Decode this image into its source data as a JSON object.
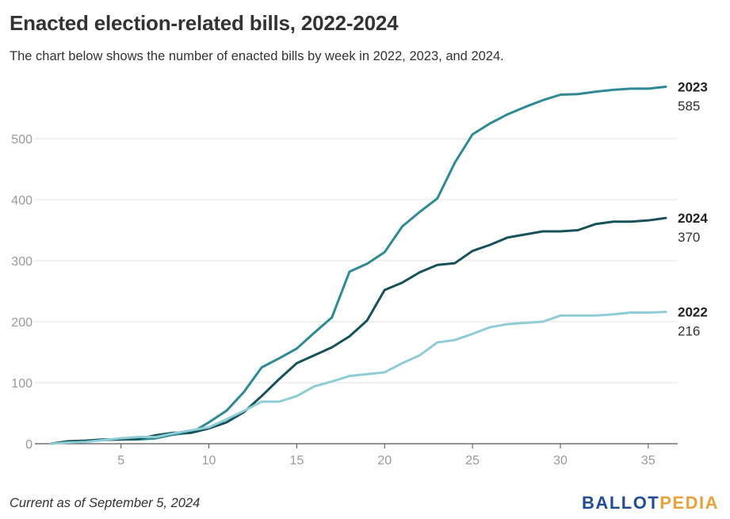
{
  "header": {
    "title": "Enacted election-related bills, 2022-2024",
    "subtitle": "The chart below shows the number of enacted bills by week in 2022, 2023, and 2024."
  },
  "footer": {
    "note": "Current as of September 5, 2024",
    "logo_part1": "BALLOT",
    "logo_part2": "PEDIA"
  },
  "colors": {
    "2022": "#8ecdd6",
    "2023": "#2e8a94",
    "2024": "#17525a",
    "grid": "#e3e3e3",
    "axis": "#555555"
  },
  "chart_data": {
    "type": "line",
    "title": "Enacted election-related bills, 2022-2024",
    "xlabel": "",
    "ylabel": "",
    "xlim": [
      1,
      36
    ],
    "ylim": [
      0,
      600
    ],
    "x_ticks": [
      5,
      10,
      15,
      20,
      25,
      30,
      35
    ],
    "y_ticks": [
      0,
      100,
      200,
      300,
      400,
      500
    ],
    "grid": true,
    "legend": "end-of-line labels",
    "x": [
      1,
      2,
      3,
      4,
      5,
      6,
      7,
      8,
      9,
      10,
      11,
      12,
      13,
      14,
      15,
      16,
      17,
      18,
      19,
      20,
      21,
      22,
      23,
      24,
      25,
      26,
      27,
      28,
      29,
      30,
      31,
      32,
      33,
      34,
      35,
      36
    ],
    "series": [
      {
        "name": "2023",
        "end_value": "585",
        "values": [
          0,
          3,
          4,
          6,
          7,
          7,
          9,
          15,
          18,
          35,
          54,
          85,
          125,
          140,
          156,
          182,
          207,
          282,
          295,
          314,
          356,
          380,
          402,
          461,
          507,
          525,
          540,
          552,
          563,
          572,
          573,
          577,
          580,
          582,
          582,
          585
        ]
      },
      {
        "name": "2024",
        "end_value": "370",
        "values": [
          0,
          4,
          5,
          7,
          7,
          8,
          14,
          18,
          18,
          25,
          35,
          52,
          78,
          106,
          132,
          145,
          158,
          176,
          202,
          252,
          264,
          281,
          293,
          296,
          316,
          326,
          338,
          343,
          348,
          348,
          350,
          360,
          364,
          364,
          366,
          370
        ]
      },
      {
        "name": "2022",
        "end_value": "216",
        "values": [
          0,
          2,
          3,
          6,
          9,
          11,
          11,
          17,
          22,
          27,
          40,
          54,
          69,
          69,
          78,
          94,
          102,
          111,
          114,
          117,
          132,
          145,
          166,
          170,
          180,
          191,
          196,
          198,
          200,
          210,
          210,
          210,
          212,
          215,
          215,
          216
        ]
      }
    ]
  }
}
